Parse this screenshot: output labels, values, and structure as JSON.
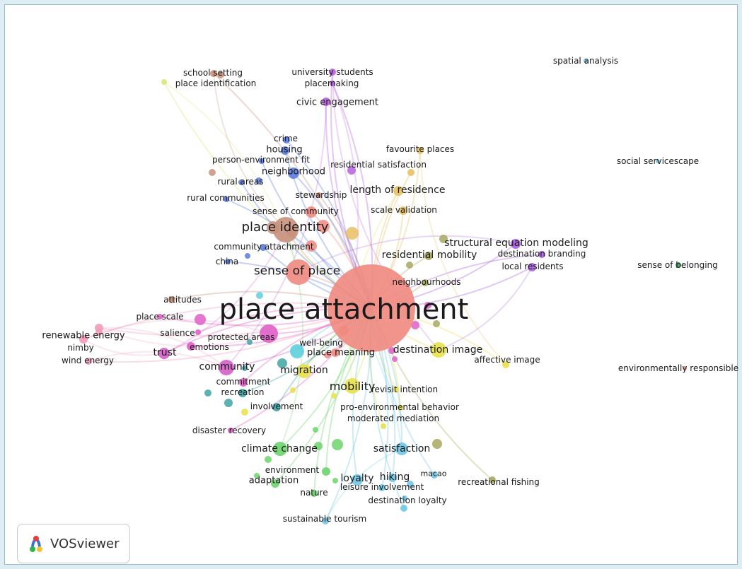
{
  "badge": {
    "label": "VOSviewer",
    "icon": "vosviewer-logo-icon"
  },
  "network": {
    "center": "place attachment",
    "terms": [
      {
        "id": "place-attachment",
        "label": "place attachment",
        "color": "#f08a80",
        "weight": 10
      },
      {
        "id": "sense-of-place",
        "label": "sense of place",
        "color": "#f08a80",
        "weight": 6
      },
      {
        "id": "place-identity",
        "label": "place identity",
        "color": "#c8907a",
        "weight": 7
      },
      {
        "id": "sense-of-community",
        "label": "sense of community",
        "color": "#f08a80",
        "weight": 4
      },
      {
        "id": "place-meaning",
        "label": "place meaning",
        "color": "#f08a80",
        "weight": 4
      },
      {
        "id": "well-being",
        "label": "well-being",
        "color": "#5ecfdc",
        "weight": 3
      },
      {
        "id": "protected-areas",
        "label": "protected areas",
        "color": "#e05fc8",
        "weight": 4
      },
      {
        "id": "destination-image",
        "label": "destination image",
        "color": "#e8e04a",
        "weight": 5
      },
      {
        "id": "affective-image",
        "label": "affective image",
        "color": "#e8e04a",
        "weight": 3
      },
      {
        "id": "migration",
        "label": "migration",
        "color": "#e8e04a",
        "weight": 4
      },
      {
        "id": "mobility",
        "label": "mobility",
        "color": "#e8e04a",
        "weight": 5
      },
      {
        "id": "revisit-intention",
        "label": "revisit intention",
        "color": "#e8e04a",
        "weight": 2
      },
      {
        "id": "pro-environmental-behavior",
        "label": "pro-environmental behavior",
        "color": "#e8e04a",
        "weight": 2
      },
      {
        "id": "moderated-mediation",
        "label": "moderated mediation",
        "color": "#e8e04a",
        "weight": 2
      },
      {
        "id": "satisfaction",
        "label": "satisfaction",
        "color": "#6fc6e6",
        "weight": 5
      },
      {
        "id": "loyalty",
        "label": "loyalty",
        "color": "#6fc6e6",
        "weight": 4
      },
      {
        "id": "hiking",
        "label": "hiking",
        "color": "#6fc6e6",
        "weight": 3
      },
      {
        "id": "macao",
        "label": "macao",
        "color": "#6fc6e6",
        "weight": 2
      },
      {
        "id": "leisure-involvement",
        "label": "leisure involvement",
        "color": "#6fc6e6",
        "weight": 2
      },
      {
        "id": "destination-loyalty",
        "label": "destination loyalty",
        "color": "#6fc6e6",
        "weight": 2
      },
      {
        "id": "sustainable-tourism",
        "label": "sustainable tourism",
        "color": "#6fc6e6",
        "weight": 2
      },
      {
        "id": "recreational-fishing",
        "label": "recreational fishing",
        "color": "#a8a860",
        "weight": 2
      },
      {
        "id": "climate-change",
        "label": "climate change",
        "color": "#6cd46c",
        "weight": 5
      },
      {
        "id": "environment",
        "label": "environment",
        "color": "#6cd46c",
        "weight": 2
      },
      {
        "id": "adaptation",
        "label": "adaptation",
        "color": "#6cd46c",
        "weight": 3
      },
      {
        "id": "nature",
        "label": "nature",
        "color": "#6cd46c",
        "weight": 2
      },
      {
        "id": "disaster-recovery",
        "label": "disaster recovery",
        "color": "#e05fc8",
        "weight": 2
      },
      {
        "id": "involvement",
        "label": "involvement",
        "color": "#3fa3a3",
        "weight": 2
      },
      {
        "id": "recreation",
        "label": "recreation",
        "color": "#3fa3a3",
        "weight": 2
      },
      {
        "id": "commitment",
        "label": "commitment",
        "color": "#e05fc8",
        "weight": 2
      },
      {
        "id": "community",
        "label": "community",
        "color": "#d45fc8",
        "weight": 5
      },
      {
        "id": "trust",
        "label": "trust",
        "color": "#d45fc8",
        "weight": 4
      },
      {
        "id": "emotions",
        "label": "emotions",
        "color": "#e05fc8",
        "weight": 2
      },
      {
        "id": "salience",
        "label": "salience",
        "color": "#e05fc8",
        "weight": 2
      },
      {
        "id": "place-scale",
        "label": "place scale",
        "color": "#e05fc8",
        "weight": 2
      },
      {
        "id": "attitudes",
        "label": "attitudes",
        "color": "#c8907a",
        "weight": 2
      },
      {
        "id": "renewable-energy",
        "label": "renewable energy",
        "color": "#f29bb7",
        "weight": 3
      },
      {
        "id": "nimby",
        "label": "nimby",
        "color": "#f29bb7",
        "weight": 2
      },
      {
        "id": "wind-energy",
        "label": "wind energy",
        "color": "#f29bb7",
        "weight": 2
      },
      {
        "id": "china",
        "label": "china",
        "color": "#5b7be0",
        "weight": 2
      },
      {
        "id": "community-attachment",
        "label": "community attachment",
        "color": "#5b7be0",
        "weight": 2
      },
      {
        "id": "rural-communities",
        "label": "rural communities",
        "color": "#5b7be0",
        "weight": 2
      },
      {
        "id": "rural-areas",
        "label": "rural areas",
        "color": "#5b7be0",
        "weight": 2
      },
      {
        "id": "neighborhood",
        "label": "neighborhood",
        "color": "#5b7be0",
        "weight": 4
      },
      {
        "id": "housing",
        "label": "housing",
        "color": "#5b7be0",
        "weight": 3
      },
      {
        "id": "crime",
        "label": "crime",
        "color": "#5b7be0",
        "weight": 2
      },
      {
        "id": "person-environment-fit",
        "label": "person-environment fit",
        "color": "#5b7be0",
        "weight": 2
      },
      {
        "id": "stewardship",
        "label": "stewardship",
        "color": "#c8907a",
        "weight": 2
      },
      {
        "id": "length-of-residence",
        "label": "length of residence",
        "color": "#e8c060",
        "weight": 4
      },
      {
        "id": "scale-validation",
        "label": "scale validation",
        "color": "#e8c060",
        "weight": 2
      },
      {
        "id": "residential-satisfaction",
        "label": "residential satisfaction",
        "color": "#e8c060",
        "weight": 2
      },
      {
        "id": "favourite-places",
        "label": "favourite places",
        "color": "#e8c060",
        "weight": 2
      },
      {
        "id": "civic-engagement",
        "label": "civic engagement",
        "color": "#b85fe0",
        "weight": 3
      },
      {
        "id": "placemaking",
        "label": "placemaking",
        "color": "#b85fe0",
        "weight": 2
      },
      {
        "id": "university-students",
        "label": "university students",
        "color": "#b85fe0",
        "weight": 2
      },
      {
        "id": "school-setting",
        "label": "school setting",
        "color": "#c8907a",
        "weight": 2
      },
      {
        "id": "place-identification",
        "label": "place identification",
        "color": "#d8e87a",
        "weight": 2
      },
      {
        "id": "structural-equation-modeling",
        "label": "structural equation modeling",
        "color": "#a85fe0",
        "weight": 3
      },
      {
        "id": "destination-branding",
        "label": "destination branding",
        "color": "#a85fe0",
        "weight": 2
      },
      {
        "id": "local-residents",
        "label": "local residents",
        "color": "#a85fe0",
        "weight": 2
      },
      {
        "id": "residential-mobility",
        "label": "residential mobility",
        "color": "#a8a860",
        "weight": 3
      },
      {
        "id": "neighbourhoods",
        "label": "neighbourhoods",
        "color": "#a8a860",
        "weight": 2
      },
      {
        "id": "spatial-analysis",
        "label": "spatial analysis",
        "color": "#6fc6e6",
        "weight": 1
      },
      {
        "id": "social-servicescape",
        "label": "social servicescape",
        "color": "#6fc6e6",
        "weight": 1
      },
      {
        "id": "sense-of-belonging",
        "label": "sense of belonging",
        "color": "#3f9f5f",
        "weight": 2
      },
      {
        "id": "environmentally-responsible",
        "label": "environmentally responsible",
        "color": "#f08a80",
        "weight": 1
      }
    ]
  }
}
